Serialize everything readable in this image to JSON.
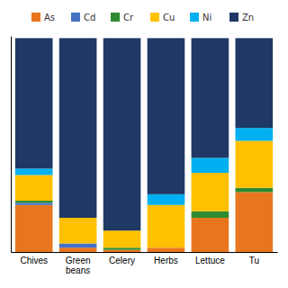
{
  "chart_data": {
    "type": "bar",
    "stacked": true,
    "categories": [
      "Chives",
      "Green\nbeans",
      "Celery",
      "Herbs",
      "Lettuce",
      "Tu"
    ],
    "series": [
      {
        "name": "As",
        "color": "#E8761E",
        "values": [
          22,
          2,
          1,
          2,
          16,
          28
        ]
      },
      {
        "name": "Cd",
        "color": "#4472C4",
        "values": [
          1,
          2,
          0,
          0,
          0,
          0
        ]
      },
      {
        "name": "Cr",
        "color": "#2E8B30",
        "values": [
          1,
          0,
          1,
          0,
          3,
          2
        ]
      },
      {
        "name": "Cu",
        "color": "#FFC000",
        "values": [
          12,
          12,
          8,
          20,
          18,
          22
        ]
      },
      {
        "name": "Ni",
        "color": "#00B0F0",
        "values": [
          3,
          0,
          0,
          5,
          7,
          6
        ]
      },
      {
        "name": "Zn",
        "color": "#1F3864",
        "values": [
          61,
          84,
          90,
          73,
          56,
          42
        ]
      }
    ],
    "ylim": [
      0,
      101
    ],
    "tick_labels": "x",
    "grid": false,
    "legend": "top"
  }
}
